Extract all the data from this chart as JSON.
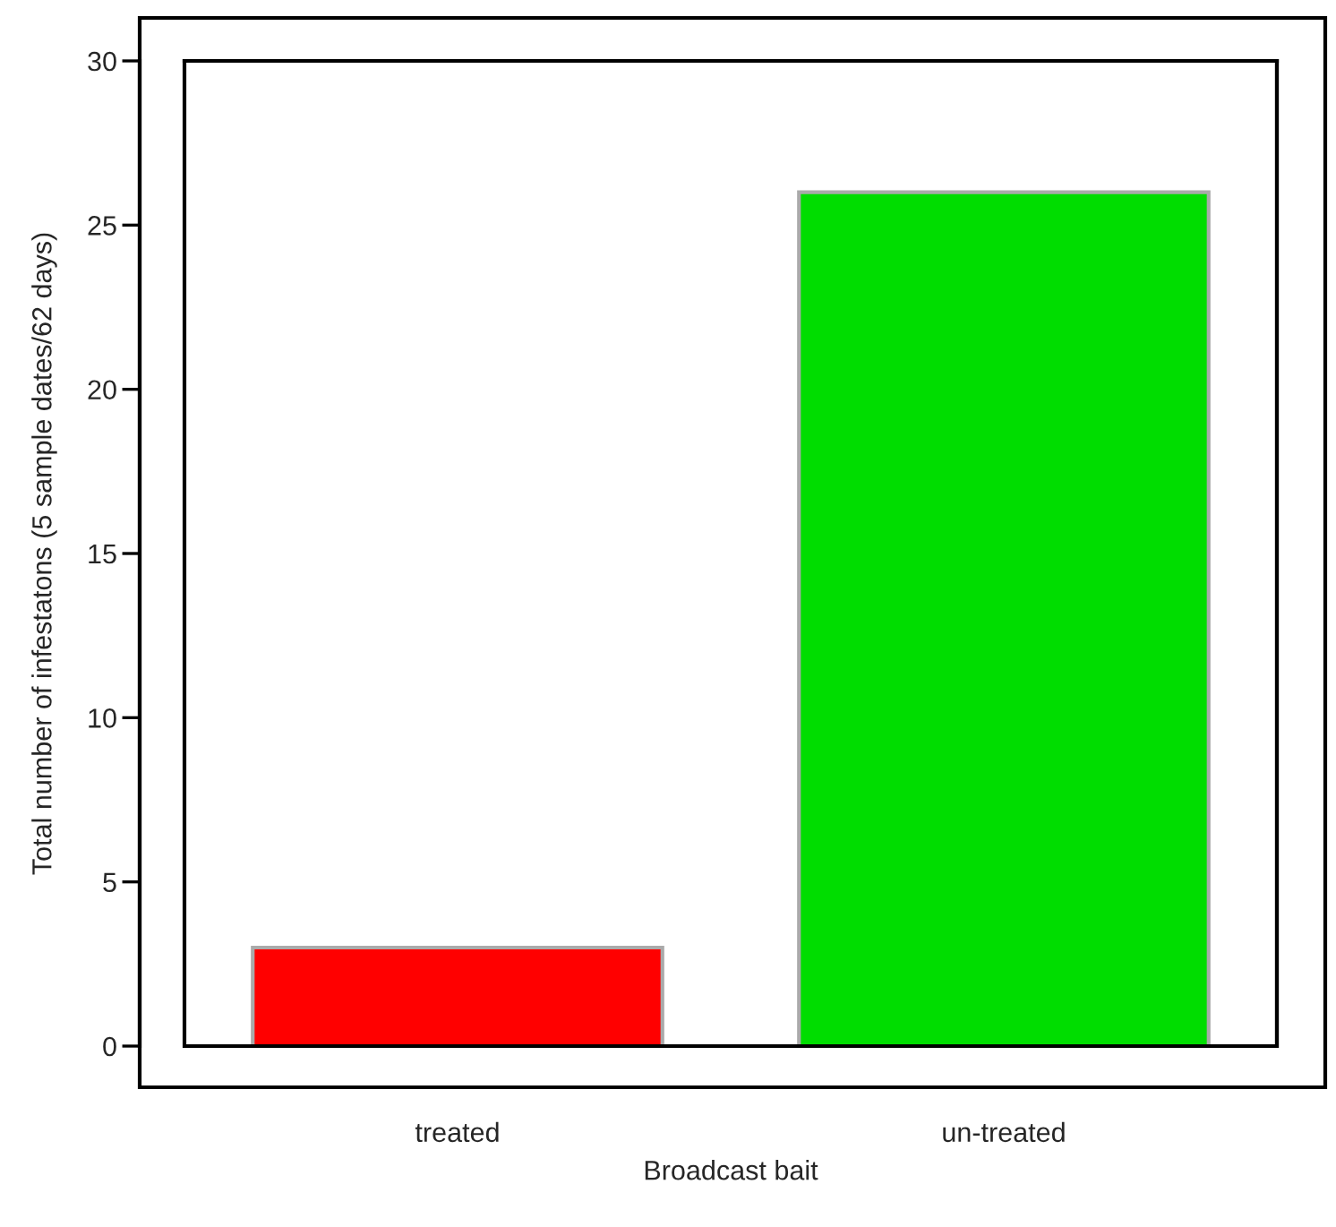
{
  "chart_data": {
    "type": "bar",
    "xlabel": "Broadcast bait",
    "ylabel": "Total number of infestatons (5 sample dates/62 days)",
    "categories": [
      "treated",
      "un-treated"
    ],
    "values": [
      3,
      26
    ],
    "colors": [
      "#ff0000",
      "#00dd00"
    ],
    "ylim": [
      0,
      30
    ],
    "yticks": [
      0,
      5,
      10,
      15,
      20,
      25,
      30
    ],
    "grid": false,
    "legend": false
  }
}
